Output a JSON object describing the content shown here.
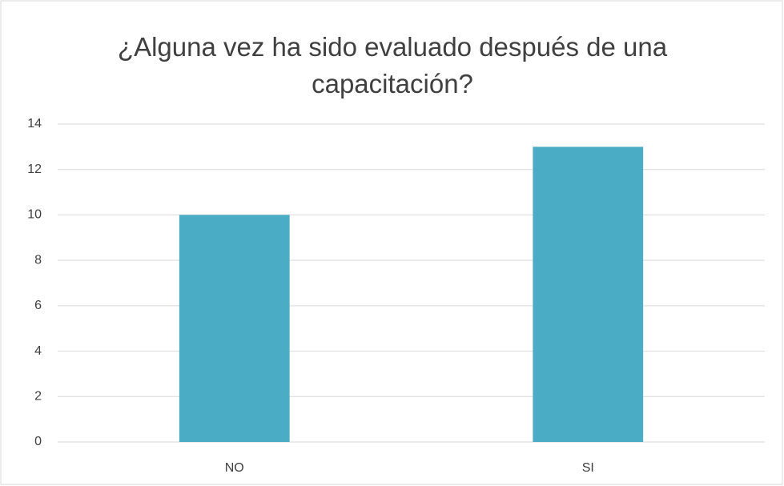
{
  "chart_data": {
    "type": "bar",
    "title": "¿Alguna vez ha sido evaluado después de una capacitación?",
    "categories": [
      "NO",
      "SI"
    ],
    "values": [
      10,
      13
    ],
    "color": "#4bacc6",
    "ylim": [
      0,
      14
    ],
    "yticks": [
      0,
      2,
      4,
      6,
      8,
      10,
      12,
      14
    ],
    "grid": true
  }
}
